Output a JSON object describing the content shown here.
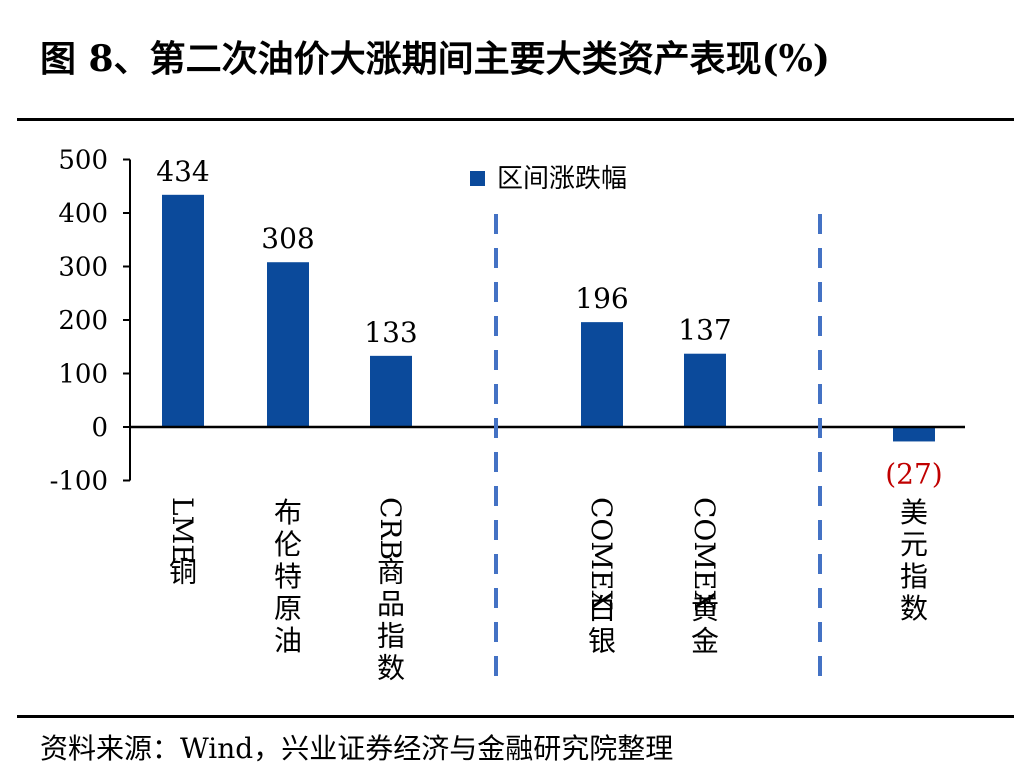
{
  "title": "图 8、第二次油价大涨期间主要大类资产表现(%)",
  "source": "资料来源：Wind，兴业证券经济与金融研究院整理",
  "colors": {
    "bar": "#0b4a9b",
    "negative_label": "#c00000",
    "divider": "#4472c4"
  },
  "chart_data": {
    "type": "bar",
    "title": "",
    "categories": [
      "LME铜",
      "布伦特原油",
      "CRB商品指数",
      "COMEX白银",
      "COMEX黄金",
      "美元指数"
    ],
    "series": [
      {
        "name": "区间涨跌幅",
        "values": [
          434,
          308,
          133,
          196,
          137,
          -27
        ]
      }
    ],
    "data_labels": [
      "434",
      "308",
      "133",
      "196",
      "137",
      "(27)"
    ],
    "xlabel": "",
    "ylabel": "",
    "ylim": [
      -100,
      500
    ],
    "yticks": [
      -100,
      0,
      100,
      200,
      300,
      400,
      500
    ],
    "grid": false,
    "legend": "top-center",
    "group_dividers": "dashed vertical lines between commodity, precious metal and currency groups"
  }
}
